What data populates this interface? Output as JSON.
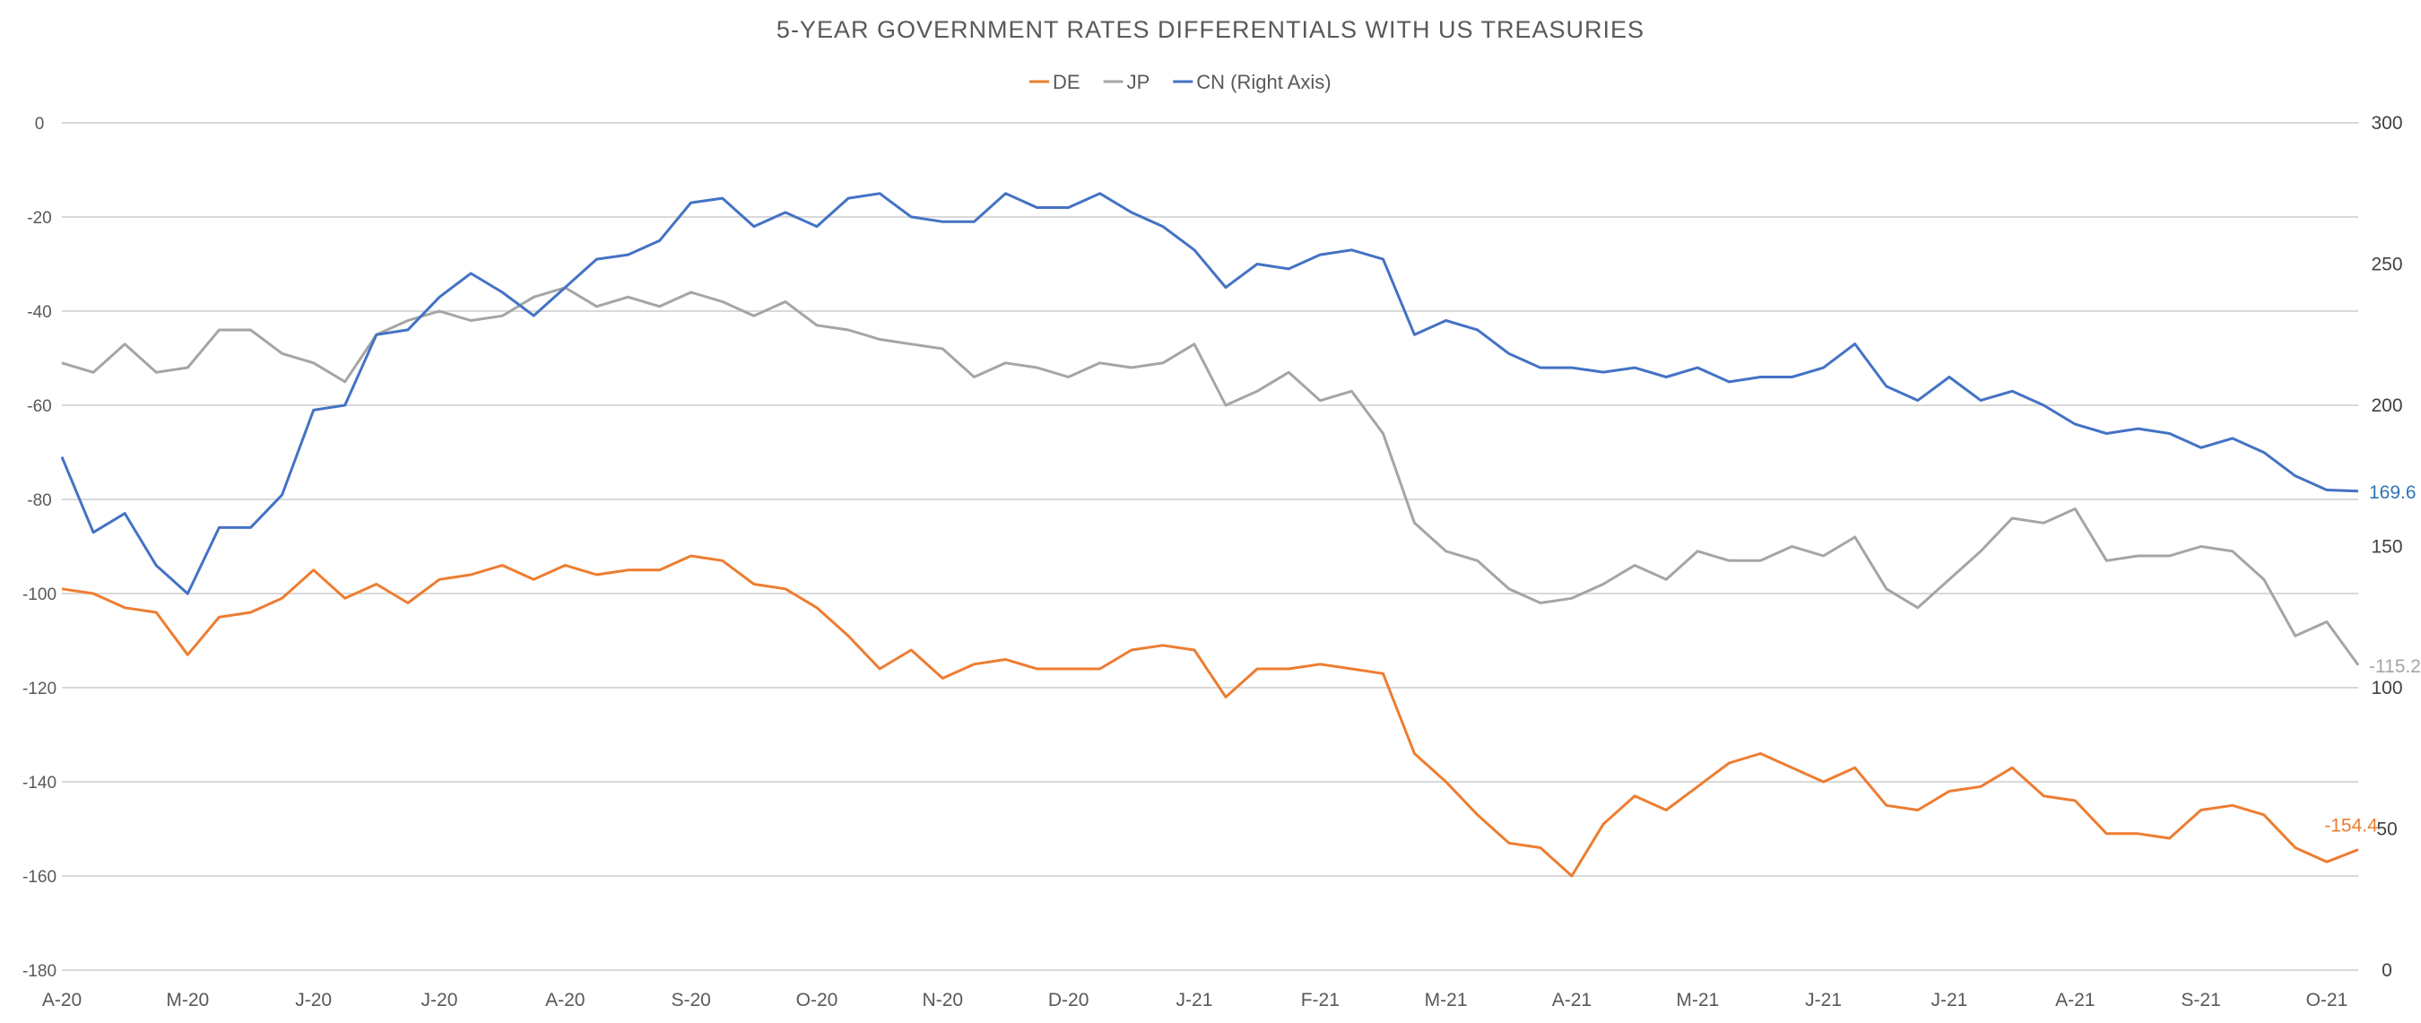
{
  "chart_data": {
    "type": "line",
    "title": "5-YEAR GOVERNMENT RATES DIFFERENTIALS WITH US TREASURIES",
    "x_unit": "months since Apr-2020",
    "x_step": 0.25,
    "x_start": 0,
    "x_tick_labels": [
      "A-20",
      "M-20",
      "J-20",
      "J-20",
      "A-20",
      "S-20",
      "O-20",
      "N-20",
      "D-20",
      "J-21",
      "F-21",
      "M-21",
      "A-21",
      "M-21",
      "J-21",
      "J-21",
      "A-21",
      "S-21",
      "O-21"
    ],
    "x_range": [
      0,
      18.25
    ],
    "left_axis": {
      "range": [
        -180,
        0
      ],
      "ticks": [
        "0",
        "-20",
        "-40",
        "-60",
        "-80",
        "-100",
        "-120",
        "-140",
        "-160",
        "-180"
      ]
    },
    "right_axis": {
      "range": [
        0,
        300
      ],
      "ticks": [
        "300",
        "250",
        "200",
        "150",
        "100",
        "50",
        "0"
      ]
    },
    "grid": true,
    "legend_position": "top-center",
    "series": [
      {
        "name": "DE",
        "axis": "left",
        "color": "#ED7D31",
        "last_label": "-154.4",
        "values": [
          -99,
          -100,
          -103,
          -104,
          -113,
          -105,
          -104,
          -101,
          -95,
          -101,
          -98,
          -102,
          -97,
          -96,
          -94,
          -97,
          -94,
          -96,
          -95,
          -95,
          -92,
          -93,
          -98,
          -99,
          -103,
          -109,
          -116,
          -112,
          -118,
          -115,
          -114,
          -116,
          -116,
          -116,
          -112,
          -111,
          -112,
          -122,
          -116,
          -116,
          -115,
          -116,
          -117,
          -134,
          -140,
          -147,
          -153,
          -154,
          -160,
          -149,
          -143,
          -146,
          -141,
          -136,
          -134,
          -137,
          -140,
          -137,
          -145,
          -146,
          -142,
          -141,
          -137,
          -143,
          -144,
          -151,
          -151,
          -152,
          -146,
          -145,
          -147,
          -154,
          -157,
          -154.4
        ]
      },
      {
        "name": "JP",
        "axis": "left",
        "color": "#A5A5A5",
        "last_label": "-115.2",
        "values": [
          -51,
          -53,
          -47,
          -53,
          -52,
          -44,
          -44,
          -49,
          -51,
          -55,
          -45,
          -42,
          -40,
          -42,
          -41,
          -37,
          -35,
          -39,
          -37,
          -39,
          -36,
          -38,
          -41,
          -38,
          -43,
          -44,
          -46,
          -47,
          -48,
          -54,
          -51,
          -52,
          -54,
          -51,
          -52,
          -51,
          -47,
          -60,
          -57,
          -53,
          -59,
          -57,
          -66,
          -85,
          -91,
          -93,
          -99,
          -102,
          -101,
          -98,
          -94,
          -97,
          -91,
          -93,
          -93,
          -90,
          -92,
          -88,
          -99,
          -103,
          -97,
          -91,
          -84,
          -85,
          -82,
          -93,
          -92,
          -92,
          -90,
          -91,
          -97,
          -109,
          -106,
          -115.2
        ]
      },
      {
        "name": "CN (Right Axis)",
        "axis": "right",
        "color": "#4472C4",
        "last_label": "169.6",
        "values": [
          181.7,
          155,
          161.7,
          143.3,
          133.3,
          156.7,
          156.7,
          168.3,
          198.3,
          200,
          225,
          226.7,
          238.3,
          246.7,
          240,
          231.7,
          241.7,
          251.7,
          253.3,
          258.3,
          271.7,
          273.3,
          263.3,
          268.3,
          263.3,
          273.3,
          275,
          266.7,
          265,
          265,
          275,
          270,
          270,
          275,
          268.3,
          263.3,
          255,
          241.7,
          250,
          248.3,
          253.3,
          255,
          251.7,
          225,
          230,
          226.7,
          218.3,
          213.3,
          213.3,
          211.7,
          213.3,
          210,
          213.3,
          208.3,
          210,
          210,
          213.3,
          221.7,
          206.7,
          201.7,
          210,
          201.7,
          205,
          200,
          193.3,
          190,
          191.7,
          190,
          185,
          188.3,
          183.3,
          175,
          170,
          169.6
        ]
      }
    ]
  }
}
